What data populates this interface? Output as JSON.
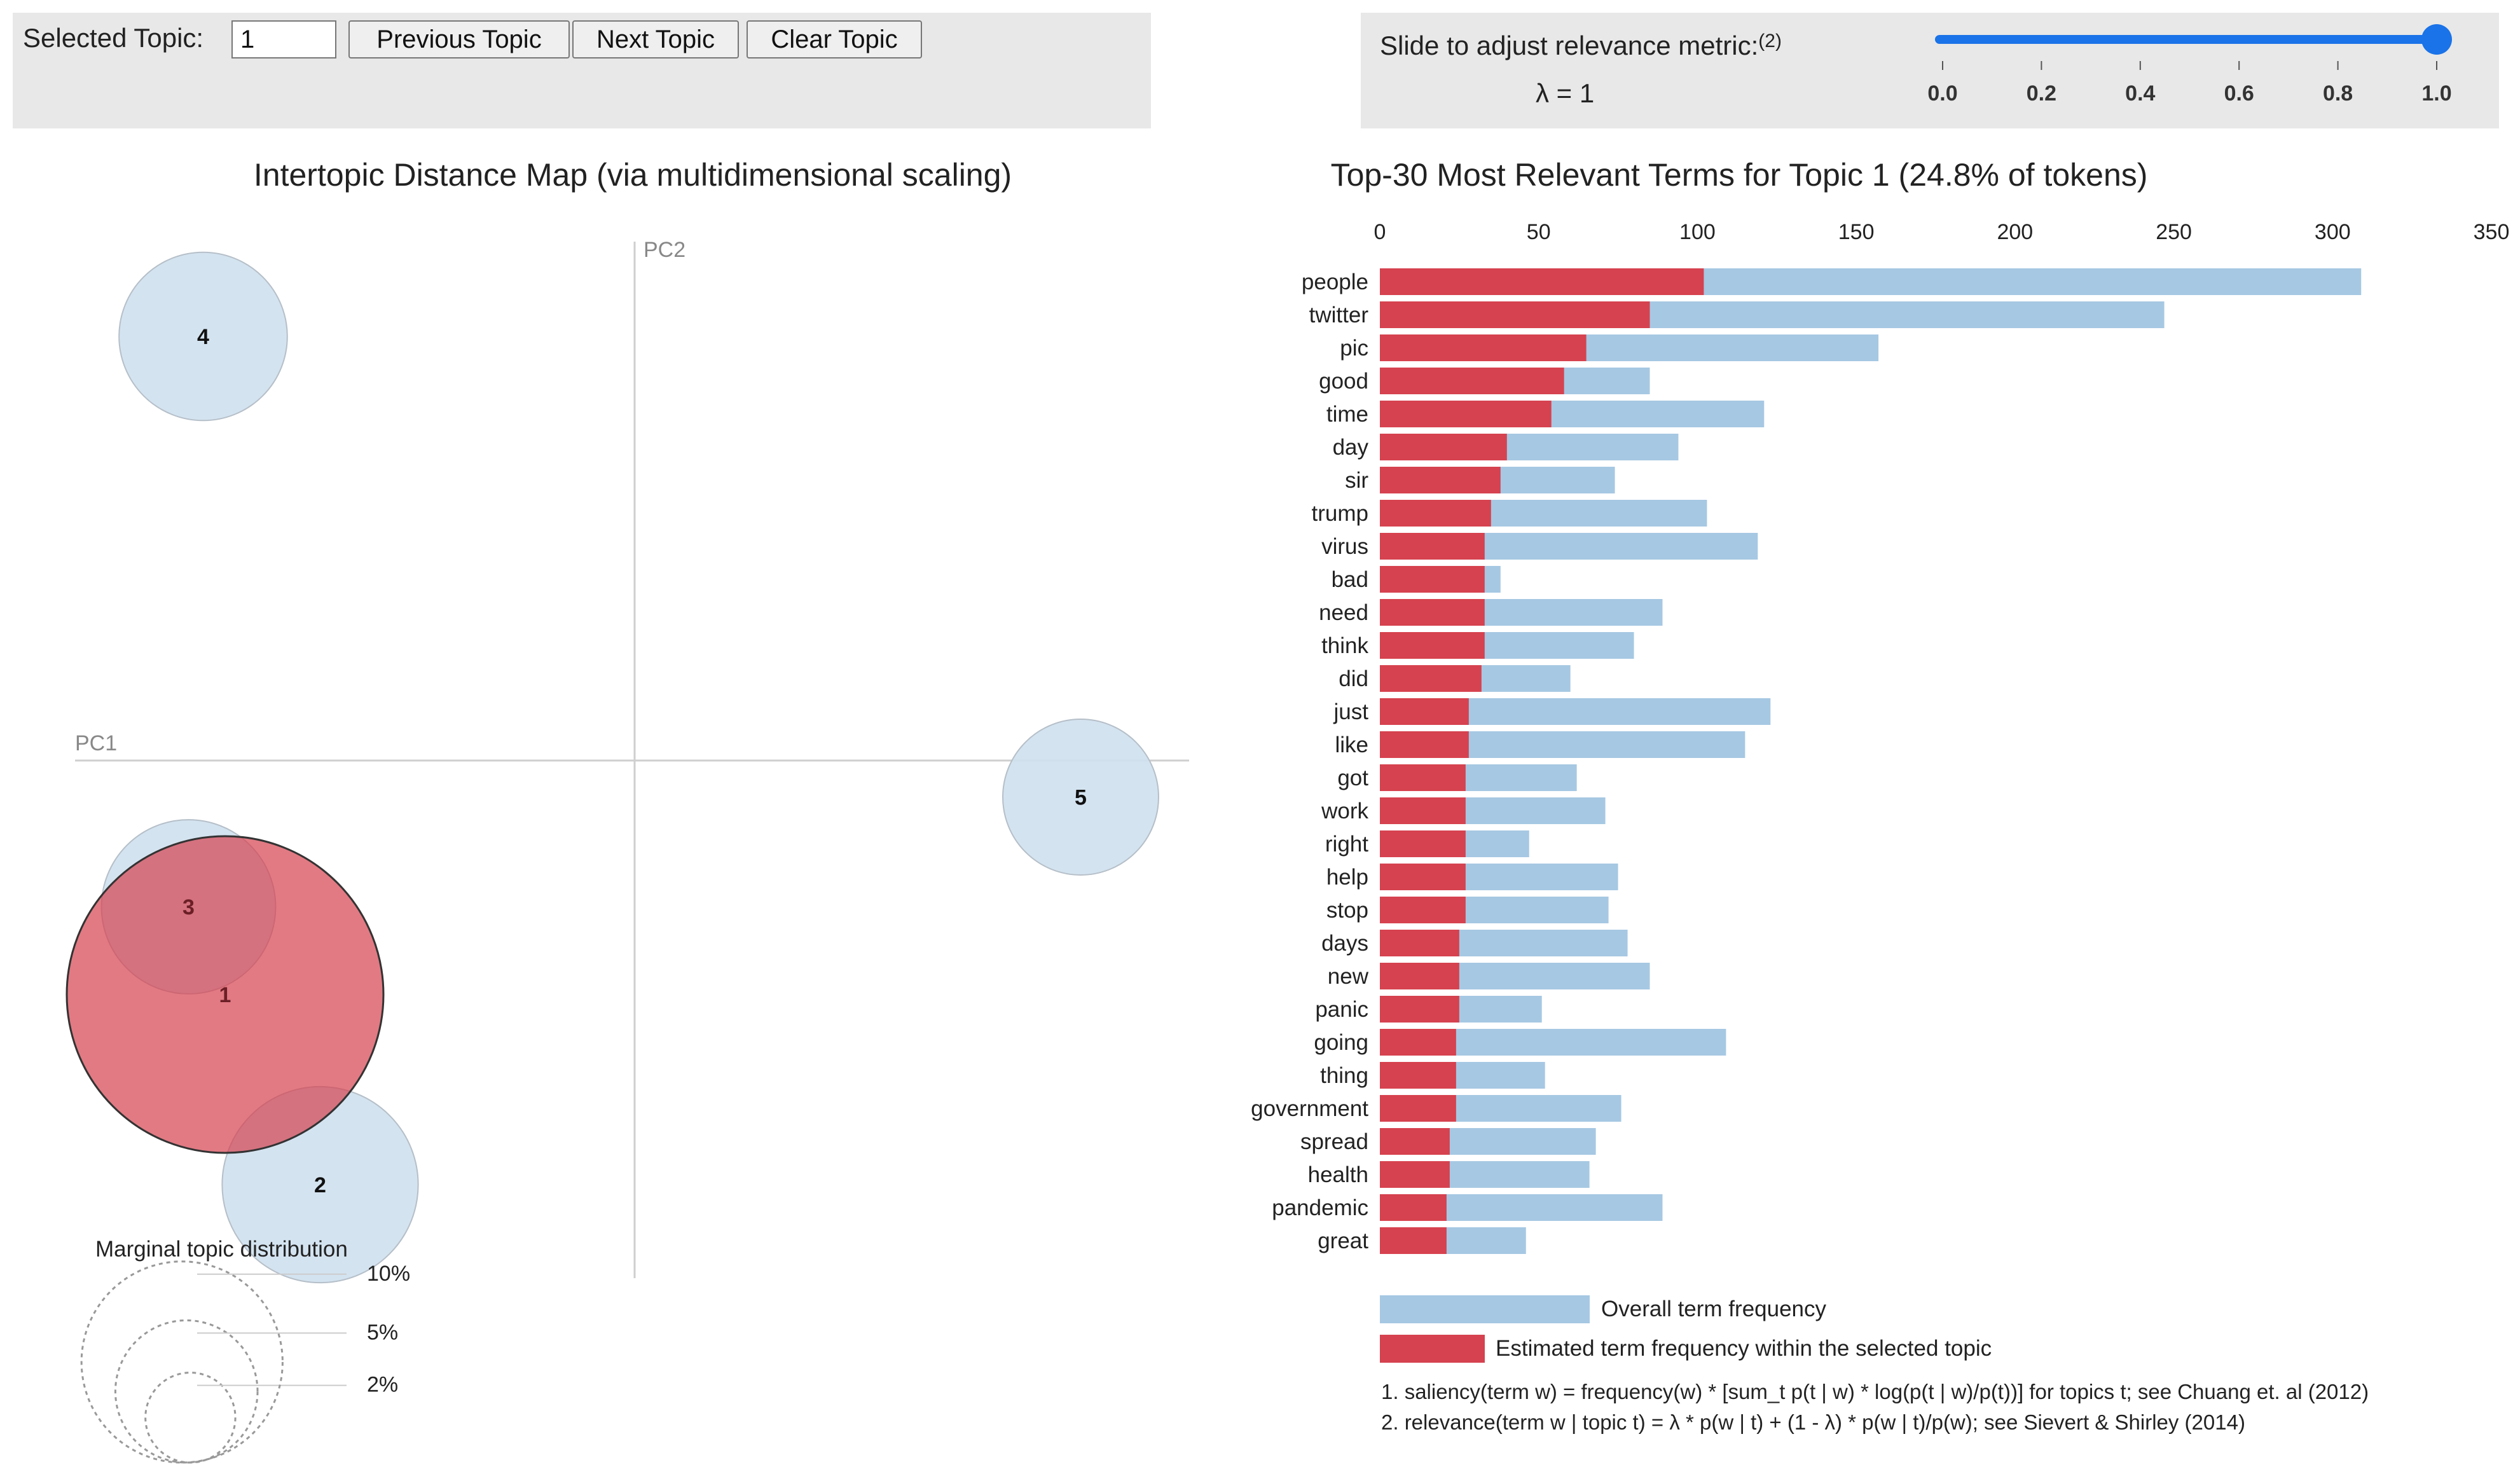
{
  "controls": {
    "selected_topic_label": "Selected Topic:",
    "selected_topic_value": "1",
    "prev_label": "Previous Topic",
    "next_label": "Next Topic",
    "clear_label": "Clear Topic",
    "slider_label": "Slide to adjust relevance metric:",
    "slider_note": "(2)",
    "lambda_label": "λ = 1",
    "lambda_value": 1,
    "slider_ticks": [
      "0.0",
      "0.2",
      "0.4",
      "0.6",
      "0.8",
      "1.0"
    ]
  },
  "colors": {
    "accent": "#1a73e8",
    "selected_red": "#d6424f",
    "overall_blue": "#a6c8e3",
    "circle_fill": "#cfe0ee",
    "circle_stroke": "#b5bfc8"
  },
  "chart_data": [
    {
      "type": "scatter",
      "title": "Intertopic Distance Map (via multidimensional scaling)",
      "xlabel": "PC1",
      "ylabel": "PC2",
      "selected_topic": 1,
      "topics": [
        {
          "label": "4",
          "pc1": -0.295,
          "pc2": 0.29,
          "share": 7
        },
        {
          "label": "5",
          "pc1": 0.305,
          "pc2": -0.025,
          "share": 6
        },
        {
          "label": "3",
          "pc1": -0.305,
          "pc2": -0.1,
          "share": 7.5
        },
        {
          "label": "1",
          "pc1": -0.28,
          "pc2": -0.16,
          "share": 24.8
        },
        {
          "label": "2",
          "pc1": -0.215,
          "pc2": -0.29,
          "share": 9.5
        }
      ],
      "legend": {
        "title": "Marginal topic distribution",
        "items": [
          {
            "label": "2%",
            "share": 2
          },
          {
            "label": "5%",
            "share": 5
          },
          {
            "label": "10%",
            "share": 10
          }
        ]
      }
    },
    {
      "type": "bar",
      "orientation": "horizontal",
      "title": "Top-30 Most Relevant Terms for Topic 1 (24.8% of tokens)",
      "xlim": [
        0,
        350
      ],
      "ticks": [
        0,
        50,
        100,
        150,
        200,
        250,
        300,
        350
      ],
      "categories": [
        "people",
        "twitter",
        "pic",
        "good",
        "time",
        "day",
        "sir",
        "trump",
        "virus",
        "bad",
        "need",
        "think",
        "did",
        "just",
        "like",
        "got",
        "work",
        "right",
        "help",
        "stop",
        "days",
        "new",
        "panic",
        "going",
        "thing",
        "government",
        "spread",
        "health",
        "pandemic",
        "great"
      ],
      "series": [
        {
          "name": "Overall term frequency",
          "values": [
            309,
            247,
            157,
            85,
            121,
            94,
            74,
            103,
            119,
            38,
            89,
            80,
            60,
            123,
            115,
            62,
            71,
            47,
            75,
            72,
            78,
            85,
            51,
            109,
            52,
            76,
            68,
            66,
            89,
            46
          ]
        },
        {
          "name": "Estimated term frequency within the selected topic",
          "values": [
            102,
            85,
            65,
            58,
            54,
            40,
            38,
            35,
            33,
            33,
            33,
            33,
            32,
            28,
            28,
            27,
            27,
            27,
            27,
            27,
            25,
            25,
            25,
            24,
            24,
            24,
            22,
            22,
            21,
            21
          ]
        }
      ],
      "notes": [
        "1. saliency(term w) = frequency(w) * [sum_t p(t | w) * log(p(t | w)/p(t))] for topics t; see Chuang et. al (2012)",
        "2. relevance(term w | topic t) = λ * p(w | t) + (1 - λ) * p(w | t)/p(w); see Sievert & Shirley (2014)"
      ]
    }
  ]
}
